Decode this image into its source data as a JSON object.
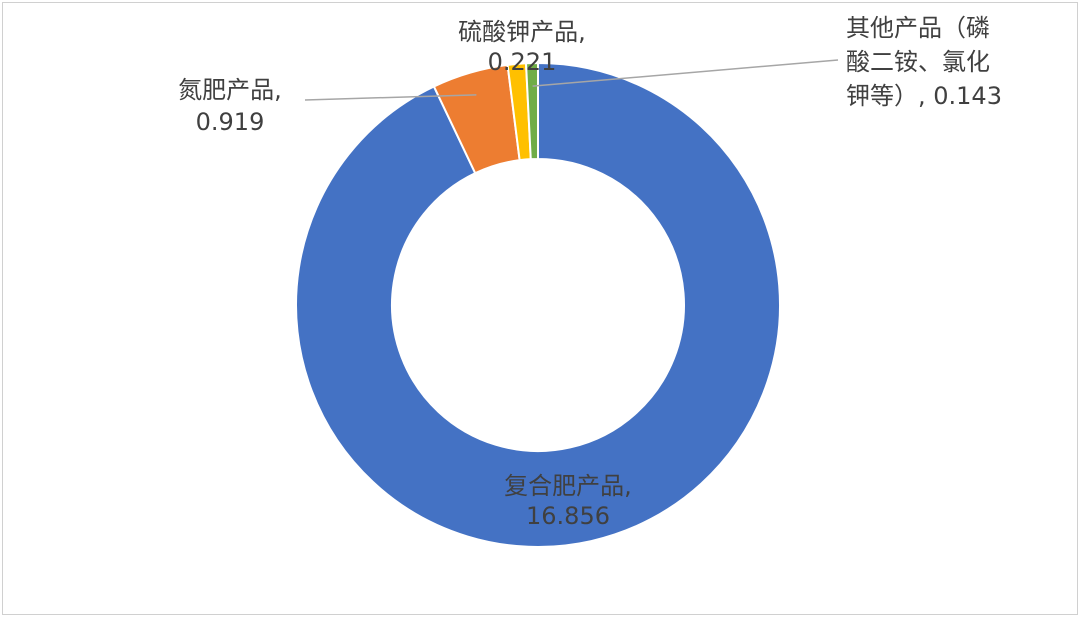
{
  "chart_data": {
    "type": "pie",
    "variant": "donut",
    "slices": [
      {
        "name": "复合肥产品,",
        "value_text": "16.856",
        "value": 16.856,
        "color": "#4472C4"
      },
      {
        "name": "氮肥产品,",
        "value_text": "0.919",
        "value": 0.919,
        "color": "#ED7D31"
      },
      {
        "name": "硫酸钾产品,",
        "value_text": "0.221",
        "value": 0.221,
        "color": "#FFC000"
      },
      {
        "name_lines": [
          "其他产品（磷",
          "酸二铵、氯化",
          "钾等）, 0.143"
        ],
        "value": 0.143,
        "color": "#70AD47"
      }
    ],
    "legend": "none",
    "grid": false
  }
}
